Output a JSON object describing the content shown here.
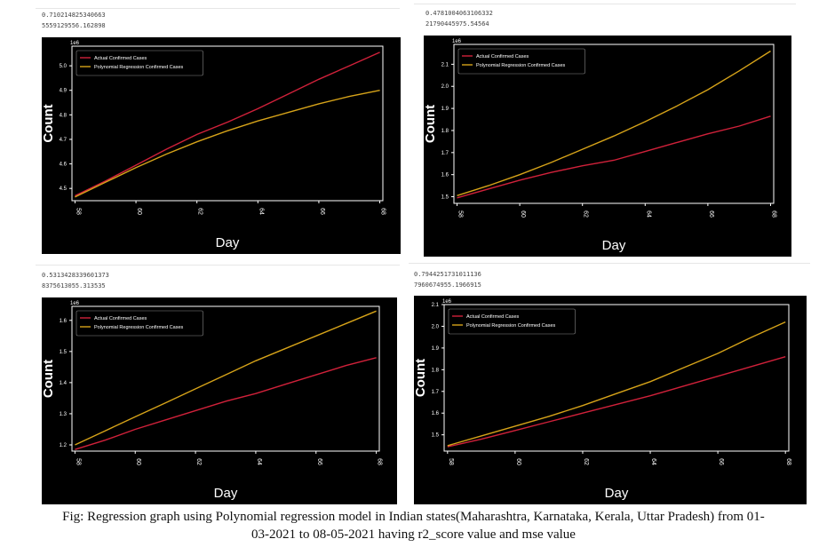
{
  "caption": {
    "line1": "Fig: Regression graph using Polynomial  regression model in Indian states(Maharashtra, Karnataka, Kerala, Uttar Pradesh) from 01-",
    "line2": "03-2021 to 08-05-2021 having r2_score value and mse value"
  },
  "colors": {
    "actual": "#d0213a",
    "poly": "#d6a319",
    "background": "#000000",
    "axis": "#ffffff"
  },
  "chart_data": [
    {
      "type": "line",
      "r2_score": "0.710214825340663",
      "mse": "5559129556.162898",
      "xlabel": "Day",
      "ylabel": "Count",
      "offset_text": "1e6",
      "xlim": [
        57.9,
        68.1
      ],
      "ylim": [
        4.45,
        5.08
      ],
      "xticks": [
        58,
        60,
        62,
        64,
        66,
        68
      ],
      "yticks": [
        4.5,
        4.6,
        4.7,
        4.8,
        4.9,
        5.0
      ],
      "x": [
        58,
        59,
        60,
        61,
        62,
        63,
        64,
        65,
        66,
        67,
        68
      ],
      "legend_position": "top-left",
      "series": [
        {
          "name": "Actual Confirmed Cases",
          "color": "#d0213a",
          "values": [
            4.47,
            4.53,
            4.595,
            4.66,
            4.72,
            4.77,
            4.825,
            4.885,
            4.945,
            5.0,
            5.055
          ]
        },
        {
          "name": "Polynomial Regression Confirmed Cases",
          "color": "#d6a319",
          "values": [
            4.465,
            4.525,
            4.585,
            4.64,
            4.69,
            4.735,
            4.775,
            4.81,
            4.845,
            4.875,
            4.9
          ]
        }
      ]
    },
    {
      "type": "line",
      "r2_score": "0.4781004063106332",
      "mse": "21790445975.54564",
      "xlabel": "Day",
      "ylabel": "Count",
      "offset_text": "1e6",
      "xlim": [
        57.9,
        68.1
      ],
      "ylim": [
        1.47,
        2.19
      ],
      "xticks": [
        58,
        60,
        62,
        64,
        66,
        68
      ],
      "yticks": [
        1.5,
        1.6,
        1.7,
        1.8,
        1.9,
        2.0,
        2.1
      ],
      "x": [
        58,
        59,
        60,
        61,
        62,
        63,
        64,
        65,
        66,
        67,
        68
      ],
      "legend_position": "top-left",
      "series": [
        {
          "name": "Actual Confirmed Cases",
          "color": "#d0213a",
          "values": [
            1.495,
            1.535,
            1.575,
            1.61,
            1.64,
            1.665,
            1.705,
            1.745,
            1.785,
            1.82,
            1.865
          ]
        },
        {
          "name": "Polynomial Regression Confirmed Cases",
          "color": "#d6a319",
          "values": [
            1.505,
            1.55,
            1.6,
            1.655,
            1.715,
            1.775,
            1.84,
            1.91,
            1.985,
            2.07,
            2.16
          ]
        }
      ]
    },
    {
      "type": "line",
      "r2_score": "0.5313428339601373",
      "mse": "8375613055.313535",
      "xlabel": "Day",
      "ylabel": "Count",
      "offset_text": "1e6",
      "xlim": [
        57.9,
        68.1
      ],
      "ylim": [
        1.18,
        1.645
      ],
      "xticks": [
        58,
        60,
        62,
        64,
        66,
        68
      ],
      "yticks": [
        1.2,
        1.3,
        1.4,
        1.5,
        1.6
      ],
      "x": [
        58,
        59,
        60,
        61,
        62,
        63,
        64,
        65,
        66,
        67,
        68
      ],
      "legend_position": "top-left",
      "series": [
        {
          "name": "Actual Confirmed Cases",
          "color": "#d0213a",
          "values": [
            1.185,
            1.215,
            1.25,
            1.28,
            1.31,
            1.34,
            1.365,
            1.395,
            1.425,
            1.455,
            1.48
          ]
        },
        {
          "name": "Polynomial Regression Confirmed Cases",
          "color": "#d6a319",
          "values": [
            1.2,
            1.245,
            1.29,
            1.335,
            1.38,
            1.425,
            1.47,
            1.51,
            1.55,
            1.59,
            1.63
          ]
        }
      ]
    },
    {
      "type": "line",
      "r2_score": "0.7944251731011136",
      "mse": "7960674955.1966915",
      "xlabel": "Day",
      "ylabel": "Count",
      "offset_text": "1e6",
      "xlim": [
        57.9,
        68.1
      ],
      "ylim": [
        1.425,
        2.1
      ],
      "xticks": [
        58,
        60,
        62,
        64,
        66,
        68
      ],
      "yticks": [
        1.5,
        1.6,
        1.7,
        1.8,
        1.9,
        2.0,
        2.1
      ],
      "x": [
        58,
        59,
        60,
        61,
        62,
        63,
        64,
        65,
        66,
        67,
        68
      ],
      "legend_position": "top-left",
      "series": [
        {
          "name": "Actual Confirmed Cases",
          "color": "#d0213a",
          "values": [
            1.445,
            1.48,
            1.52,
            1.56,
            1.6,
            1.64,
            1.68,
            1.725,
            1.77,
            1.815,
            1.86
          ]
        },
        {
          "name": "Polynomial Regression Confirmed Cases",
          "color": "#d6a319",
          "values": [
            1.45,
            1.495,
            1.54,
            1.585,
            1.635,
            1.69,
            1.745,
            1.81,
            1.875,
            1.95,
            2.02
          ]
        }
      ]
    }
  ]
}
